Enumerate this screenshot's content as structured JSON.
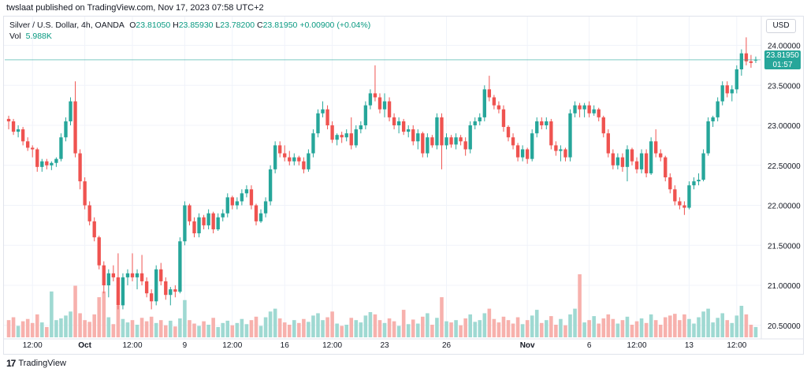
{
  "header": {
    "publisher_text": "twslaat published on TradingView.com, Nov 17, 2023 07:58 UTC+2"
  },
  "legend": {
    "symbol": "Silver / U.S. Dollar, 4h, OANDA",
    "open_label": "O",
    "open": "23.81050",
    "high_label": "H",
    "high": "23.85930",
    "low_label": "L",
    "low": "23.78200",
    "close_label": "C",
    "close": "23.81950",
    "change": "+0.00900 (+0.04%)",
    "vol_label": "Vol",
    "vol_value": "5.988K"
  },
  "currency_button": "USD",
  "last_price_tag": {
    "price": "23.81950",
    "countdown": "01:57"
  },
  "footer": {
    "brand": "TradingView"
  },
  "colors": {
    "up": "#26a69a",
    "down": "#ef5350",
    "vol_up": "#9fd9d2",
    "vol_down": "#f7b1ad",
    "grid": "#f0f3fa"
  },
  "chart_data": {
    "type": "candlestick",
    "title": "Silver / U.S. Dollar, 4h, OANDA",
    "ylim": [
      20.35,
      24.35
    ],
    "y_ticks": [
      "24.00000",
      "23.50000",
      "23.00000",
      "22.50000",
      "22.00000",
      "21.50000",
      "21.00000",
      "20.50000"
    ],
    "y_tick_values": [
      24.0,
      23.5,
      23.0,
      22.5,
      22.0,
      21.5,
      21.0,
      20.5
    ],
    "x_tick_labels": [
      {
        "label": "12:00",
        "bar": 5
      },
      {
        "label": "Oct",
        "bar": 16
      },
      {
        "label": "12:00",
        "bar": 26
      },
      {
        "label": "9",
        "bar": 37
      },
      {
        "label": "12:00",
        "bar": 47
      },
      {
        "label": "16",
        "bar": 58
      },
      {
        "label": "12:00",
        "bar": 68
      },
      {
        "label": "23",
        "bar": 79
      },
      {
        "label": "26",
        "bar": 92
      },
      {
        "label": "Nov",
        "bar": 109
      },
      {
        "label": "6",
        "bar": 122
      },
      {
        "label": "12:00",
        "bar": 132
      },
      {
        "label": "13",
        "bar": 143
      },
      {
        "label": "12:00",
        "bar": 153
      }
    ],
    "last_price": 23.8195,
    "volume_scale_max": 11,
    "candles": [
      {
        "o": 23.08,
        "h": 23.12,
        "l": 22.95,
        "c": 23.05,
        "v": 3.0
      },
      {
        "o": 23.05,
        "h": 23.08,
        "l": 22.88,
        "c": 22.92,
        "v": 3.5
      },
      {
        "o": 22.92,
        "h": 23.0,
        "l": 22.85,
        "c": 22.95,
        "v": 2.0
      },
      {
        "o": 22.95,
        "h": 22.98,
        "l": 22.75,
        "c": 22.8,
        "v": 2.8
      },
      {
        "o": 22.8,
        "h": 22.85,
        "l": 22.68,
        "c": 22.72,
        "v": 3.2
      },
      {
        "o": 22.72,
        "h": 22.75,
        "l": 22.6,
        "c": 22.7,
        "v": 2.5
      },
      {
        "o": 22.7,
        "h": 22.72,
        "l": 22.42,
        "c": 22.48,
        "v": 4.0
      },
      {
        "o": 22.48,
        "h": 22.58,
        "l": 22.42,
        "c": 22.55,
        "v": 2.6
      },
      {
        "o": 22.55,
        "h": 22.58,
        "l": 22.45,
        "c": 22.5,
        "v": 1.8
      },
      {
        "o": 22.5,
        "h": 22.55,
        "l": 22.44,
        "c": 22.53,
        "v": 8.0
      },
      {
        "o": 22.53,
        "h": 22.6,
        "l": 22.48,
        "c": 22.58,
        "v": 3.0
      },
      {
        "o": 22.58,
        "h": 22.9,
        "l": 22.55,
        "c": 22.85,
        "v": 3.3
      },
      {
        "o": 22.85,
        "h": 23.1,
        "l": 22.8,
        "c": 23.05,
        "v": 3.8
      },
      {
        "o": 23.05,
        "h": 23.35,
        "l": 23.0,
        "c": 23.3,
        "v": 4.5
      },
      {
        "o": 23.3,
        "h": 23.55,
        "l": 22.6,
        "c": 22.65,
        "v": 9.0
      },
      {
        "o": 22.65,
        "h": 22.7,
        "l": 22.2,
        "c": 22.3,
        "v": 4.2
      },
      {
        "o": 22.3,
        "h": 22.35,
        "l": 21.95,
        "c": 22.0,
        "v": 3.0
      },
      {
        "o": 22.0,
        "h": 22.05,
        "l": 21.75,
        "c": 21.8,
        "v": 2.7
      },
      {
        "o": 21.8,
        "h": 21.85,
        "l": 21.55,
        "c": 21.6,
        "v": 4.0
      },
      {
        "o": 21.6,
        "h": 21.62,
        "l": 21.2,
        "c": 21.25,
        "v": 7.0
      },
      {
        "o": 21.25,
        "h": 21.3,
        "l": 20.9,
        "c": 21.0,
        "v": 8.0
      },
      {
        "o": 21.0,
        "h": 21.2,
        "l": 20.85,
        "c": 21.15,
        "v": 3.5
      },
      {
        "o": 21.15,
        "h": 21.25,
        "l": 21.05,
        "c": 21.1,
        "v": 2.3
      },
      {
        "o": 21.1,
        "h": 21.4,
        "l": 20.7,
        "c": 20.75,
        "v": 5.5
      },
      {
        "o": 20.75,
        "h": 21.15,
        "l": 20.7,
        "c": 21.1,
        "v": 3.2
      },
      {
        "o": 21.1,
        "h": 21.2,
        "l": 21.0,
        "c": 21.15,
        "v": 2.6
      },
      {
        "o": 21.15,
        "h": 21.4,
        "l": 21.05,
        "c": 21.1,
        "v": 3.0
      },
      {
        "o": 21.1,
        "h": 21.2,
        "l": 20.95,
        "c": 21.15,
        "v": 2.2
      },
      {
        "o": 21.15,
        "h": 21.38,
        "l": 21.0,
        "c": 21.05,
        "v": 3.4
      },
      {
        "o": 21.05,
        "h": 21.1,
        "l": 20.85,
        "c": 20.9,
        "v": 2.8
      },
      {
        "o": 20.9,
        "h": 20.95,
        "l": 20.7,
        "c": 20.8,
        "v": 3.6
      },
      {
        "o": 20.8,
        "h": 21.25,
        "l": 20.75,
        "c": 21.2,
        "v": 2.5
      },
      {
        "o": 21.2,
        "h": 21.28,
        "l": 21.0,
        "c": 21.05,
        "v": 3.0
      },
      {
        "o": 21.05,
        "h": 21.1,
        "l": 20.82,
        "c": 20.88,
        "v": 2.1
      },
      {
        "o": 20.88,
        "h": 20.98,
        "l": 20.75,
        "c": 20.95,
        "v": 2.9
      },
      {
        "o": 20.95,
        "h": 21.0,
        "l": 20.85,
        "c": 20.92,
        "v": 1.9
      },
      {
        "o": 20.92,
        "h": 21.6,
        "l": 20.9,
        "c": 21.55,
        "v": 3.3
      },
      {
        "o": 21.55,
        "h": 22.05,
        "l": 21.5,
        "c": 22.0,
        "v": 6.5
      },
      {
        "o": 22.0,
        "h": 22.02,
        "l": 21.75,
        "c": 21.8,
        "v": 3.0
      },
      {
        "o": 21.8,
        "h": 21.85,
        "l": 21.6,
        "c": 21.65,
        "v": 2.4
      },
      {
        "o": 21.65,
        "h": 21.9,
        "l": 21.6,
        "c": 21.85,
        "v": 2.0
      },
      {
        "o": 21.85,
        "h": 21.88,
        "l": 21.7,
        "c": 21.75,
        "v": 2.8
      },
      {
        "o": 21.75,
        "h": 21.95,
        "l": 21.7,
        "c": 21.9,
        "v": 2.2
      },
      {
        "o": 21.9,
        "h": 21.92,
        "l": 21.65,
        "c": 21.7,
        "v": 3.4
      },
      {
        "o": 21.7,
        "h": 21.9,
        "l": 21.68,
        "c": 21.85,
        "v": 1.8
      },
      {
        "o": 21.85,
        "h": 21.95,
        "l": 21.8,
        "c": 21.9,
        "v": 2.5
      },
      {
        "o": 21.9,
        "h": 22.15,
        "l": 21.85,
        "c": 22.1,
        "v": 2.9
      },
      {
        "o": 22.1,
        "h": 22.12,
        "l": 21.95,
        "c": 22.0,
        "v": 2.1
      },
      {
        "o": 22.0,
        "h": 22.1,
        "l": 21.95,
        "c": 22.05,
        "v": 2.5
      },
      {
        "o": 22.05,
        "h": 22.2,
        "l": 22.0,
        "c": 22.15,
        "v": 3.2
      },
      {
        "o": 22.15,
        "h": 22.25,
        "l": 22.1,
        "c": 22.2,
        "v": 2.3
      },
      {
        "o": 22.2,
        "h": 22.25,
        "l": 21.95,
        "c": 22.0,
        "v": 3.0
      },
      {
        "o": 22.0,
        "h": 22.02,
        "l": 21.75,
        "c": 21.8,
        "v": 3.6
      },
      {
        "o": 21.8,
        "h": 21.95,
        "l": 21.78,
        "c": 21.9,
        "v": 2.0
      },
      {
        "o": 21.9,
        "h": 22.1,
        "l": 21.85,
        "c": 22.05,
        "v": 3.5
      },
      {
        "o": 22.05,
        "h": 22.5,
        "l": 22.0,
        "c": 22.45,
        "v": 4.5
      },
      {
        "o": 22.45,
        "h": 22.8,
        "l": 22.4,
        "c": 22.75,
        "v": 5.0
      },
      {
        "o": 22.75,
        "h": 22.8,
        "l": 22.6,
        "c": 22.65,
        "v": 3.3
      },
      {
        "o": 22.65,
        "h": 22.75,
        "l": 22.55,
        "c": 22.6,
        "v": 2.6
      },
      {
        "o": 22.6,
        "h": 22.68,
        "l": 22.5,
        "c": 22.55,
        "v": 2.2
      },
      {
        "o": 22.55,
        "h": 22.65,
        "l": 22.5,
        "c": 22.6,
        "v": 3.0
      },
      {
        "o": 22.6,
        "h": 22.62,
        "l": 22.5,
        "c": 22.55,
        "v": 2.5
      },
      {
        "o": 22.55,
        "h": 22.6,
        "l": 22.4,
        "c": 22.45,
        "v": 3.2
      },
      {
        "o": 22.45,
        "h": 22.7,
        "l": 22.42,
        "c": 22.65,
        "v": 2.7
      },
      {
        "o": 22.65,
        "h": 22.95,
        "l": 22.6,
        "c": 22.9,
        "v": 3.8
      },
      {
        "o": 22.9,
        "h": 23.2,
        "l": 22.85,
        "c": 23.15,
        "v": 4.2
      },
      {
        "o": 23.15,
        "h": 23.3,
        "l": 23.1,
        "c": 23.2,
        "v": 3.0
      },
      {
        "o": 23.2,
        "h": 23.25,
        "l": 22.95,
        "c": 23.0,
        "v": 3.5
      },
      {
        "o": 23.0,
        "h": 23.05,
        "l": 22.78,
        "c": 22.82,
        "v": 4.5
      },
      {
        "o": 22.82,
        "h": 22.9,
        "l": 22.75,
        "c": 22.88,
        "v": 2.4
      },
      {
        "o": 22.88,
        "h": 22.92,
        "l": 22.78,
        "c": 22.85,
        "v": 2.0
      },
      {
        "o": 22.85,
        "h": 22.95,
        "l": 22.8,
        "c": 22.9,
        "v": 2.2
      },
      {
        "o": 22.9,
        "h": 23.1,
        "l": 22.7,
        "c": 22.75,
        "v": 3.4
      },
      {
        "o": 22.75,
        "h": 23.0,
        "l": 22.72,
        "c": 22.95,
        "v": 3.0
      },
      {
        "o": 22.95,
        "h": 23.05,
        "l": 22.9,
        "c": 23.0,
        "v": 2.6
      },
      {
        "o": 23.0,
        "h": 23.3,
        "l": 22.95,
        "c": 23.25,
        "v": 3.8
      },
      {
        "o": 23.25,
        "h": 23.45,
        "l": 23.2,
        "c": 23.4,
        "v": 4.4
      },
      {
        "o": 23.4,
        "h": 23.75,
        "l": 23.3,
        "c": 23.35,
        "v": 4.0
      },
      {
        "o": 23.35,
        "h": 23.4,
        "l": 23.15,
        "c": 23.2,
        "v": 3.0
      },
      {
        "o": 23.2,
        "h": 23.4,
        "l": 23.1,
        "c": 23.3,
        "v": 2.5
      },
      {
        "o": 23.3,
        "h": 23.35,
        "l": 23.05,
        "c": 23.1,
        "v": 3.3
      },
      {
        "o": 23.1,
        "h": 23.15,
        "l": 22.95,
        "c": 23.0,
        "v": 2.8
      },
      {
        "o": 23.0,
        "h": 23.1,
        "l": 22.9,
        "c": 23.05,
        "v": 2.0
      },
      {
        "o": 23.05,
        "h": 23.08,
        "l": 22.88,
        "c": 22.92,
        "v": 4.8
      },
      {
        "o": 22.92,
        "h": 23.0,
        "l": 22.85,
        "c": 22.95,
        "v": 2.3
      },
      {
        "o": 22.95,
        "h": 23.0,
        "l": 22.75,
        "c": 22.8,
        "v": 3.1
      },
      {
        "o": 22.8,
        "h": 22.95,
        "l": 22.7,
        "c": 22.9,
        "v": 2.4
      },
      {
        "o": 22.9,
        "h": 22.92,
        "l": 22.6,
        "c": 22.65,
        "v": 3.6
      },
      {
        "o": 22.65,
        "h": 22.9,
        "l": 22.6,
        "c": 22.85,
        "v": 4.2
      },
      {
        "o": 22.85,
        "h": 22.88,
        "l": 22.72,
        "c": 22.75,
        "v": 2.2
      },
      {
        "o": 22.75,
        "h": 23.15,
        "l": 22.7,
        "c": 23.1,
        "v": 3.4
      },
      {
        "o": 23.1,
        "h": 23.15,
        "l": 22.45,
        "c": 22.75,
        "v": 7.0
      },
      {
        "o": 22.75,
        "h": 22.9,
        "l": 22.7,
        "c": 22.85,
        "v": 2.8
      },
      {
        "o": 22.85,
        "h": 22.88,
        "l": 22.72,
        "c": 22.76,
        "v": 2.6
      },
      {
        "o": 22.76,
        "h": 22.9,
        "l": 22.7,
        "c": 22.85,
        "v": 3.0
      },
      {
        "o": 22.85,
        "h": 22.88,
        "l": 22.75,
        "c": 22.8,
        "v": 2.1
      },
      {
        "o": 22.8,
        "h": 22.85,
        "l": 22.62,
        "c": 22.7,
        "v": 3.3
      },
      {
        "o": 22.7,
        "h": 23.05,
        "l": 22.65,
        "c": 23.0,
        "v": 4.0
      },
      {
        "o": 23.0,
        "h": 23.1,
        "l": 22.95,
        "c": 23.05,
        "v": 2.7
      },
      {
        "o": 23.05,
        "h": 23.15,
        "l": 23.0,
        "c": 23.1,
        "v": 3.0
      },
      {
        "o": 23.1,
        "h": 23.5,
        "l": 23.05,
        "c": 23.45,
        "v": 4.2
      },
      {
        "o": 23.45,
        "h": 23.62,
        "l": 23.3,
        "c": 23.35,
        "v": 5.0
      },
      {
        "o": 23.35,
        "h": 23.38,
        "l": 23.2,
        "c": 23.25,
        "v": 3.2
      },
      {
        "o": 23.25,
        "h": 23.3,
        "l": 23.15,
        "c": 23.2,
        "v": 2.6
      },
      {
        "o": 23.2,
        "h": 23.25,
        "l": 22.92,
        "c": 22.98,
        "v": 3.6
      },
      {
        "o": 22.98,
        "h": 23.0,
        "l": 22.8,
        "c": 22.85,
        "v": 3.0
      },
      {
        "o": 22.85,
        "h": 22.9,
        "l": 22.7,
        "c": 22.75,
        "v": 2.4
      },
      {
        "o": 22.75,
        "h": 22.78,
        "l": 22.55,
        "c": 22.6,
        "v": 3.5
      },
      {
        "o": 22.6,
        "h": 22.75,
        "l": 22.55,
        "c": 22.7,
        "v": 2.3
      },
      {
        "o": 22.7,
        "h": 22.72,
        "l": 22.52,
        "c": 22.58,
        "v": 3.0
      },
      {
        "o": 22.58,
        "h": 22.95,
        "l": 22.55,
        "c": 22.9,
        "v": 3.8
      },
      {
        "o": 22.9,
        "h": 23.1,
        "l": 22.85,
        "c": 23.05,
        "v": 4.8
      },
      {
        "o": 23.05,
        "h": 23.1,
        "l": 22.95,
        "c": 23.0,
        "v": 2.5
      },
      {
        "o": 23.0,
        "h": 23.1,
        "l": 22.95,
        "c": 23.05,
        "v": 3.0
      },
      {
        "o": 23.05,
        "h": 23.08,
        "l": 22.7,
        "c": 22.75,
        "v": 3.7
      },
      {
        "o": 22.75,
        "h": 22.8,
        "l": 22.62,
        "c": 22.68,
        "v": 2.2
      },
      {
        "o": 22.68,
        "h": 22.75,
        "l": 22.55,
        "c": 22.7,
        "v": 3.2
      },
      {
        "o": 22.7,
        "h": 22.72,
        "l": 22.55,
        "c": 22.6,
        "v": 2.1
      },
      {
        "o": 22.6,
        "h": 23.2,
        "l": 22.55,
        "c": 23.15,
        "v": 4.0
      },
      {
        "o": 23.15,
        "h": 23.3,
        "l": 23.1,
        "c": 23.25,
        "v": 5.0
      },
      {
        "o": 23.25,
        "h": 23.28,
        "l": 23.1,
        "c": 23.2,
        "v": 11.0
      },
      {
        "o": 23.2,
        "h": 23.28,
        "l": 23.1,
        "c": 23.25,
        "v": 2.6
      },
      {
        "o": 23.25,
        "h": 23.3,
        "l": 23.1,
        "c": 23.15,
        "v": 3.0
      },
      {
        "o": 23.15,
        "h": 23.25,
        "l": 23.12,
        "c": 23.2,
        "v": 3.7
      },
      {
        "o": 23.2,
        "h": 23.22,
        "l": 23.05,
        "c": 23.1,
        "v": 2.4
      },
      {
        "o": 23.1,
        "h": 23.12,
        "l": 22.85,
        "c": 22.9,
        "v": 3.3
      },
      {
        "o": 22.9,
        "h": 22.95,
        "l": 22.6,
        "c": 22.65,
        "v": 4.0
      },
      {
        "o": 22.65,
        "h": 22.7,
        "l": 22.45,
        "c": 22.5,
        "v": 3.2
      },
      {
        "o": 22.5,
        "h": 22.65,
        "l": 22.45,
        "c": 22.6,
        "v": 2.4
      },
      {
        "o": 22.6,
        "h": 22.65,
        "l": 22.42,
        "c": 22.48,
        "v": 3.0
      },
      {
        "o": 22.48,
        "h": 22.75,
        "l": 22.3,
        "c": 22.7,
        "v": 3.6
      },
      {
        "o": 22.7,
        "h": 22.72,
        "l": 22.5,
        "c": 22.55,
        "v": 2.2
      },
      {
        "o": 22.55,
        "h": 22.6,
        "l": 22.4,
        "c": 22.45,
        "v": 2.8
      },
      {
        "o": 22.45,
        "h": 22.7,
        "l": 22.4,
        "c": 22.65,
        "v": 3.3
      },
      {
        "o": 22.65,
        "h": 22.7,
        "l": 22.35,
        "c": 22.4,
        "v": 2.5
      },
      {
        "o": 22.4,
        "h": 22.85,
        "l": 22.38,
        "c": 22.8,
        "v": 4.0
      },
      {
        "o": 22.8,
        "h": 22.95,
        "l": 22.6,
        "c": 22.65,
        "v": 3.0
      },
      {
        "o": 22.65,
        "h": 22.7,
        "l": 22.55,
        "c": 22.6,
        "v": 2.2
      },
      {
        "o": 22.6,
        "h": 22.62,
        "l": 22.3,
        "c": 22.35,
        "v": 3.5
      },
      {
        "o": 22.35,
        "h": 22.4,
        "l": 22.15,
        "c": 22.2,
        "v": 3.8
      },
      {
        "o": 22.2,
        "h": 22.25,
        "l": 22.0,
        "c": 22.05,
        "v": 4.1
      },
      {
        "o": 22.05,
        "h": 22.1,
        "l": 21.95,
        "c": 22.0,
        "v": 3.0
      },
      {
        "o": 22.0,
        "h": 22.05,
        "l": 21.88,
        "c": 21.97,
        "v": 4.0
      },
      {
        "o": 21.97,
        "h": 22.3,
        "l": 21.95,
        "c": 22.25,
        "v": 3.2
      },
      {
        "o": 22.25,
        "h": 22.35,
        "l": 22.2,
        "c": 22.3,
        "v": 2.4
      },
      {
        "o": 22.3,
        "h": 22.4,
        "l": 22.25,
        "c": 22.32,
        "v": 3.5
      },
      {
        "o": 22.32,
        "h": 22.7,
        "l": 22.3,
        "c": 22.65,
        "v": 4.5
      },
      {
        "o": 22.65,
        "h": 23.1,
        "l": 22.62,
        "c": 23.05,
        "v": 5.0
      },
      {
        "o": 23.05,
        "h": 23.12,
        "l": 22.98,
        "c": 23.1,
        "v": 2.6
      },
      {
        "o": 23.1,
        "h": 23.35,
        "l": 23.05,
        "c": 23.3,
        "v": 3.4
      },
      {
        "o": 23.3,
        "h": 23.55,
        "l": 23.25,
        "c": 23.5,
        "v": 4.2
      },
      {
        "o": 23.5,
        "h": 23.55,
        "l": 23.35,
        "c": 23.4,
        "v": 3.0
      },
      {
        "o": 23.4,
        "h": 23.5,
        "l": 23.3,
        "c": 23.45,
        "v": 2.5
      },
      {
        "o": 23.45,
        "h": 23.75,
        "l": 23.4,
        "c": 23.7,
        "v": 3.8
      },
      {
        "o": 23.7,
        "h": 23.95,
        "l": 23.62,
        "c": 23.9,
        "v": 5.5
      },
      {
        "o": 23.9,
        "h": 24.1,
        "l": 23.75,
        "c": 23.8,
        "v": 4.0
      },
      {
        "o": 23.8,
        "h": 23.88,
        "l": 23.72,
        "c": 23.78,
        "v": 2.2
      },
      {
        "o": 23.81,
        "h": 23.86,
        "l": 23.78,
        "c": 23.82,
        "v": 1.8
      }
    ]
  }
}
